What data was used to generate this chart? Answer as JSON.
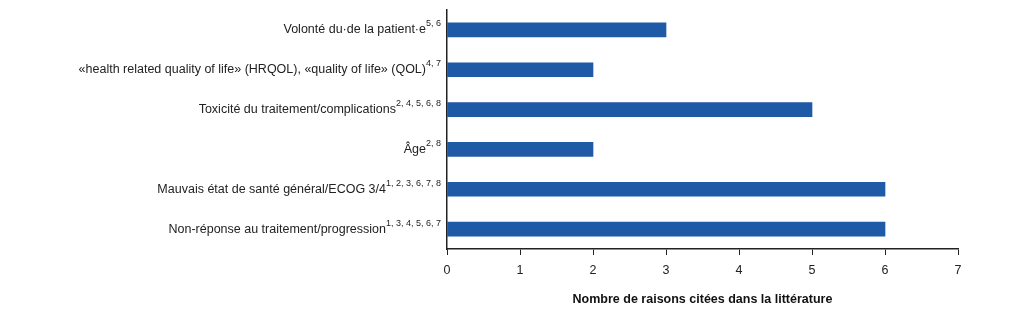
{
  "chart_data": {
    "type": "bar",
    "orientation": "horizontal",
    "categories": [
      "Volonté du·de la patient·e$^{5, 6}$",
      "«health related quality of life» (HRQOL), «quality of life» (QOL)$^{4, 7}$",
      "Toxicité du traitement/complications$^{2, 4, 5, 6, 8}$",
      "Âge$^{2, 8}$",
      "Mauvais état de santé général/ECOG 3/4$^{1, 2, 3, 6, 7, 8}$",
      "Non-réponse au traitement/progression$^{1, 3, 4, 5, 6, 7}$"
    ],
    "values": [
      3,
      2,
      5,
      2,
      6,
      6
    ],
    "color": "#1f5aa6",
    "xlabel": "Nombre de raisons citées dans la littérature",
    "xlim": [
      0,
      7
    ],
    "xticks": [
      0,
      1,
      2,
      3,
      4,
      5,
      6,
      7
    ],
    "grid": false,
    "legend": false
  }
}
